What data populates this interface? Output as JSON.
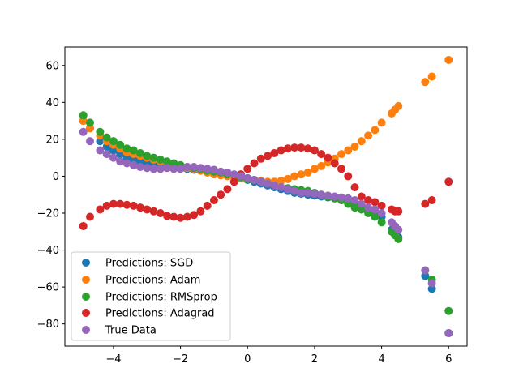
{
  "chart_data": {
    "type": "scatter",
    "title": "",
    "xlabel": "",
    "ylabel": "",
    "xlim": [
      -5.45,
      6.55
    ],
    "ylim": [
      -92,
      70
    ],
    "xticks": [
      -4,
      -2,
      0,
      2,
      4,
      6
    ],
    "yticks": [
      -80,
      -60,
      -40,
      -20,
      0,
      20,
      40,
      60
    ],
    "xtick_labels": [
      "−4",
      "−2",
      "0",
      "2",
      "4",
      "6"
    ],
    "ytick_labels": [
      "−80",
      "−60",
      "−40",
      "−20",
      "0",
      "20",
      "40",
      "60"
    ],
    "grid": false,
    "legend_position": "lower-left",
    "series": [
      {
        "name": "Predictions: SGD",
        "color": "#1f77b4",
        "x": [
          -4.9,
          -4.7,
          -4.4,
          -4.2,
          -4.0,
          -3.8,
          -3.6,
          -3.4,
          -3.2,
          -3.0,
          -2.8,
          -2.6,
          -2.4,
          -2.2,
          -2.0,
          -1.8,
          -1.6,
          -1.4,
          -1.2,
          -1.0,
          -0.8,
          -0.6,
          -0.4,
          -0.2,
          0.0,
          0.2,
          0.4,
          0.6,
          0.8,
          1.0,
          1.2,
          1.4,
          1.6,
          1.8,
          2.0,
          2.2,
          2.4,
          2.6,
          2.8,
          3.0,
          3.2,
          3.4,
          3.6,
          3.8,
          4.0,
          4.3,
          4.4,
          4.5,
          5.3,
          5.5,
          6.0
        ],
        "y": [
          30,
          26,
          19,
          16,
          14,
          12,
          10,
          9,
          8,
          7,
          6.5,
          6,
          5.5,
          5,
          4.5,
          4,
          3.5,
          3,
          2.5,
          2,
          1.5,
          1,
          0,
          -1,
          -2,
          -3,
          -4,
          -5,
          -6,
          -7,
          -8,
          -9,
          -9.5,
          -10,
          -10.5,
          -11,
          -11.5,
          -12,
          -13,
          -14,
          -16,
          -18,
          -19,
          -20,
          -22,
          -29,
          -31,
          -33,
          -54,
          -61,
          -85
        ]
      },
      {
        "name": "Predictions: Adam",
        "color": "#ff7f0e",
        "x": [
          -4.9,
          -4.7,
          -4.4,
          -4.2,
          -4.0,
          -3.8,
          -3.6,
          -3.4,
          -3.2,
          -3.0,
          -2.8,
          -2.6,
          -2.4,
          -2.2,
          -2.0,
          -1.8,
          -1.6,
          -1.4,
          -1.2,
          -1.0,
          -0.8,
          -0.6,
          -0.4,
          -0.2,
          0.0,
          0.2,
          0.4,
          0.6,
          0.8,
          1.0,
          1.2,
          1.4,
          1.6,
          1.8,
          2.0,
          2.2,
          2.4,
          2.6,
          2.8,
          3.0,
          3.2,
          3.4,
          3.6,
          3.8,
          4.0,
          4.3,
          4.4,
          4.5,
          5.3,
          5.5,
          6.0
        ],
        "y": [
          30,
          26,
          22,
          19,
          17,
          15,
          13,
          12,
          11,
          10,
          9,
          8,
          7,
          6,
          5,
          4.5,
          4,
          3,
          2,
          1,
          0.5,
          0,
          -0.5,
          -1,
          -1.5,
          -2,
          -2.5,
          -3,
          -3,
          -2.5,
          -1.5,
          0,
          1,
          2,
          4,
          5.5,
          7.5,
          9.5,
          12,
          14,
          16,
          19,
          22,
          25,
          29,
          34,
          36,
          38,
          51,
          54,
          63
        ]
      },
      {
        "name": "Predictions: RMSprop",
        "color": "#2ca02c",
        "x": [
          -4.9,
          -4.7,
          -4.4,
          -4.2,
          -4.0,
          -3.8,
          -3.6,
          -3.4,
          -3.2,
          -3.0,
          -2.8,
          -2.6,
          -2.4,
          -2.2,
          -2.0,
          -1.8,
          -1.6,
          -1.4,
          -1.2,
          -1.0,
          -0.8,
          -0.6,
          -0.4,
          -0.2,
          0.0,
          0.2,
          0.4,
          0.6,
          0.8,
          1.0,
          1.2,
          1.4,
          1.6,
          1.8,
          2.0,
          2.2,
          2.4,
          2.6,
          2.8,
          3.0,
          3.2,
          3.4,
          3.6,
          3.8,
          4.0,
          4.3,
          4.4,
          4.5,
          5.3,
          5.5,
          6.0
        ],
        "y": [
          33,
          29,
          24,
          21,
          19,
          17,
          15,
          14,
          12.5,
          11,
          10,
          9,
          8,
          7,
          6,
          5,
          4.5,
          4,
          3,
          2.5,
          2,
          1,
          0.5,
          -0.5,
          -1.5,
          -2,
          -3,
          -4,
          -5,
          -6,
          -6.5,
          -7,
          -7.5,
          -8,
          -9,
          -10,
          -11,
          -12,
          -13,
          -15,
          -17,
          -18,
          -20,
          -22,
          -25,
          -30,
          -32,
          -34,
          -51,
          -56,
          -73
        ]
      },
      {
        "name": "Predictions: Adagrad",
        "color": "#d62728",
        "x": [
          -4.9,
          -4.7,
          -4.4,
          -4.2,
          -4.0,
          -3.8,
          -3.6,
          -3.4,
          -3.2,
          -3.0,
          -2.8,
          -2.6,
          -2.4,
          -2.2,
          -2.0,
          -1.8,
          -1.6,
          -1.4,
          -1.2,
          -1.0,
          -0.8,
          -0.6,
          -0.4,
          -0.2,
          0.0,
          0.2,
          0.4,
          0.6,
          0.8,
          1.0,
          1.2,
          1.4,
          1.6,
          1.8,
          2.0,
          2.2,
          2.4,
          2.6,
          2.8,
          3.0,
          3.2,
          3.4,
          3.6,
          3.8,
          4.0,
          4.3,
          4.4,
          4.5,
          5.3,
          5.5,
          6.0
        ],
        "y": [
          -27,
          -22,
          -18,
          -16,
          -15,
          -15,
          -15.5,
          -16,
          -17,
          -18,
          -19,
          -20,
          -21.5,
          -22,
          -22.5,
          -22,
          -21,
          -19,
          -16,
          -13,
          -10,
          -7,
          -3,
          1,
          4,
          7,
          9.5,
          11,
          12.5,
          14,
          15,
          15.5,
          15.5,
          15,
          14,
          12,
          10,
          7,
          4,
          0,
          -6,
          -11,
          -13,
          -14,
          -16,
          -18,
          -19,
          -19,
          -15,
          -13,
          -3
        ]
      },
      {
        "name": "True Data",
        "color": "#9467bd",
        "x": [
          -4.9,
          -4.7,
          -4.4,
          -4.2,
          -4.0,
          -3.8,
          -3.6,
          -3.4,
          -3.2,
          -3.0,
          -2.8,
          -2.6,
          -2.4,
          -2.2,
          -2.0,
          -1.8,
          -1.6,
          -1.4,
          -1.2,
          -1.0,
          -0.8,
          -0.6,
          -0.4,
          -0.2,
          0.0,
          0.2,
          0.4,
          0.6,
          0.8,
          1.0,
          1.2,
          1.4,
          1.6,
          1.8,
          2.0,
          2.2,
          2.4,
          2.6,
          2.8,
          3.0,
          3.2,
          3.4,
          3.6,
          3.8,
          4.0,
          4.3,
          4.4,
          4.5,
          5.3,
          5.5,
          6.0
        ],
        "y": [
          24,
          19,
          14,
          12,
          10,
          8,
          7,
          6,
          5,
          4.5,
          4,
          4,
          4.5,
          4,
          4,
          5,
          5,
          4.5,
          4,
          3.5,
          2.5,
          2,
          1,
          0,
          -1,
          -2,
          -3,
          -4,
          -5,
          -6,
          -7,
          -8,
          -9,
          -9,
          -9.5,
          -10,
          -10.5,
          -11,
          -11.5,
          -12,
          -13,
          -15,
          -17,
          -18,
          -20,
          -25,
          -27,
          -29,
          -51,
          -58,
          -85
        ]
      }
    ]
  }
}
